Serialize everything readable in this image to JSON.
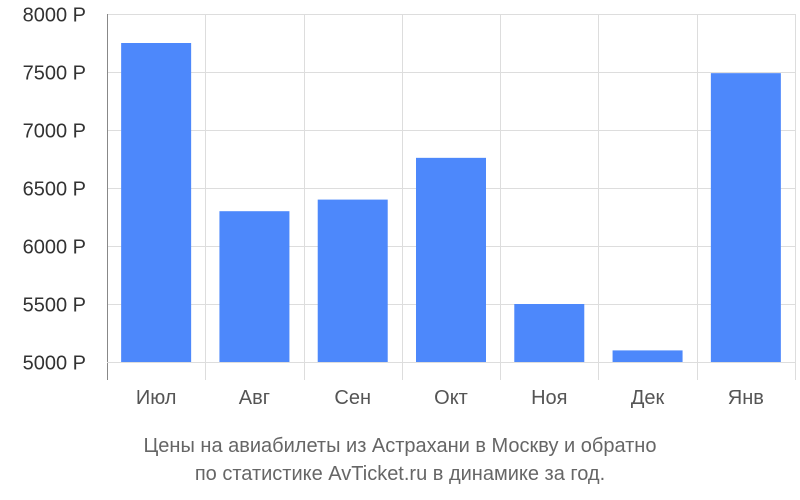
{
  "chart_data": {
    "type": "bar",
    "categories": [
      "Июл",
      "Авг",
      "Сен",
      "Окт",
      "Ноя",
      "Дек",
      "Янв"
    ],
    "values": [
      7750,
      6300,
      6400,
      6760,
      5500,
      5100,
      7490
    ],
    "ylim": [
      5000,
      8000
    ],
    "yticks": [
      5000,
      5500,
      6000,
      6500,
      7000,
      7500,
      8000
    ],
    "ytick_labels": [
      "5000 Р",
      "5500 Р",
      "6000 Р",
      "6500 Р",
      "7000 Р",
      "7500 Р",
      "8000 Р"
    ],
    "grid": true,
    "bar_color": "#4d88fb",
    "grid_color": "#dddddd",
    "axis_color": "#888888"
  },
  "caption": {
    "line1": "Цены на авиабилеты из Астрахани в Москву и обратно",
    "line2": "по статистике AvTicket.ru в динамике за год."
  }
}
